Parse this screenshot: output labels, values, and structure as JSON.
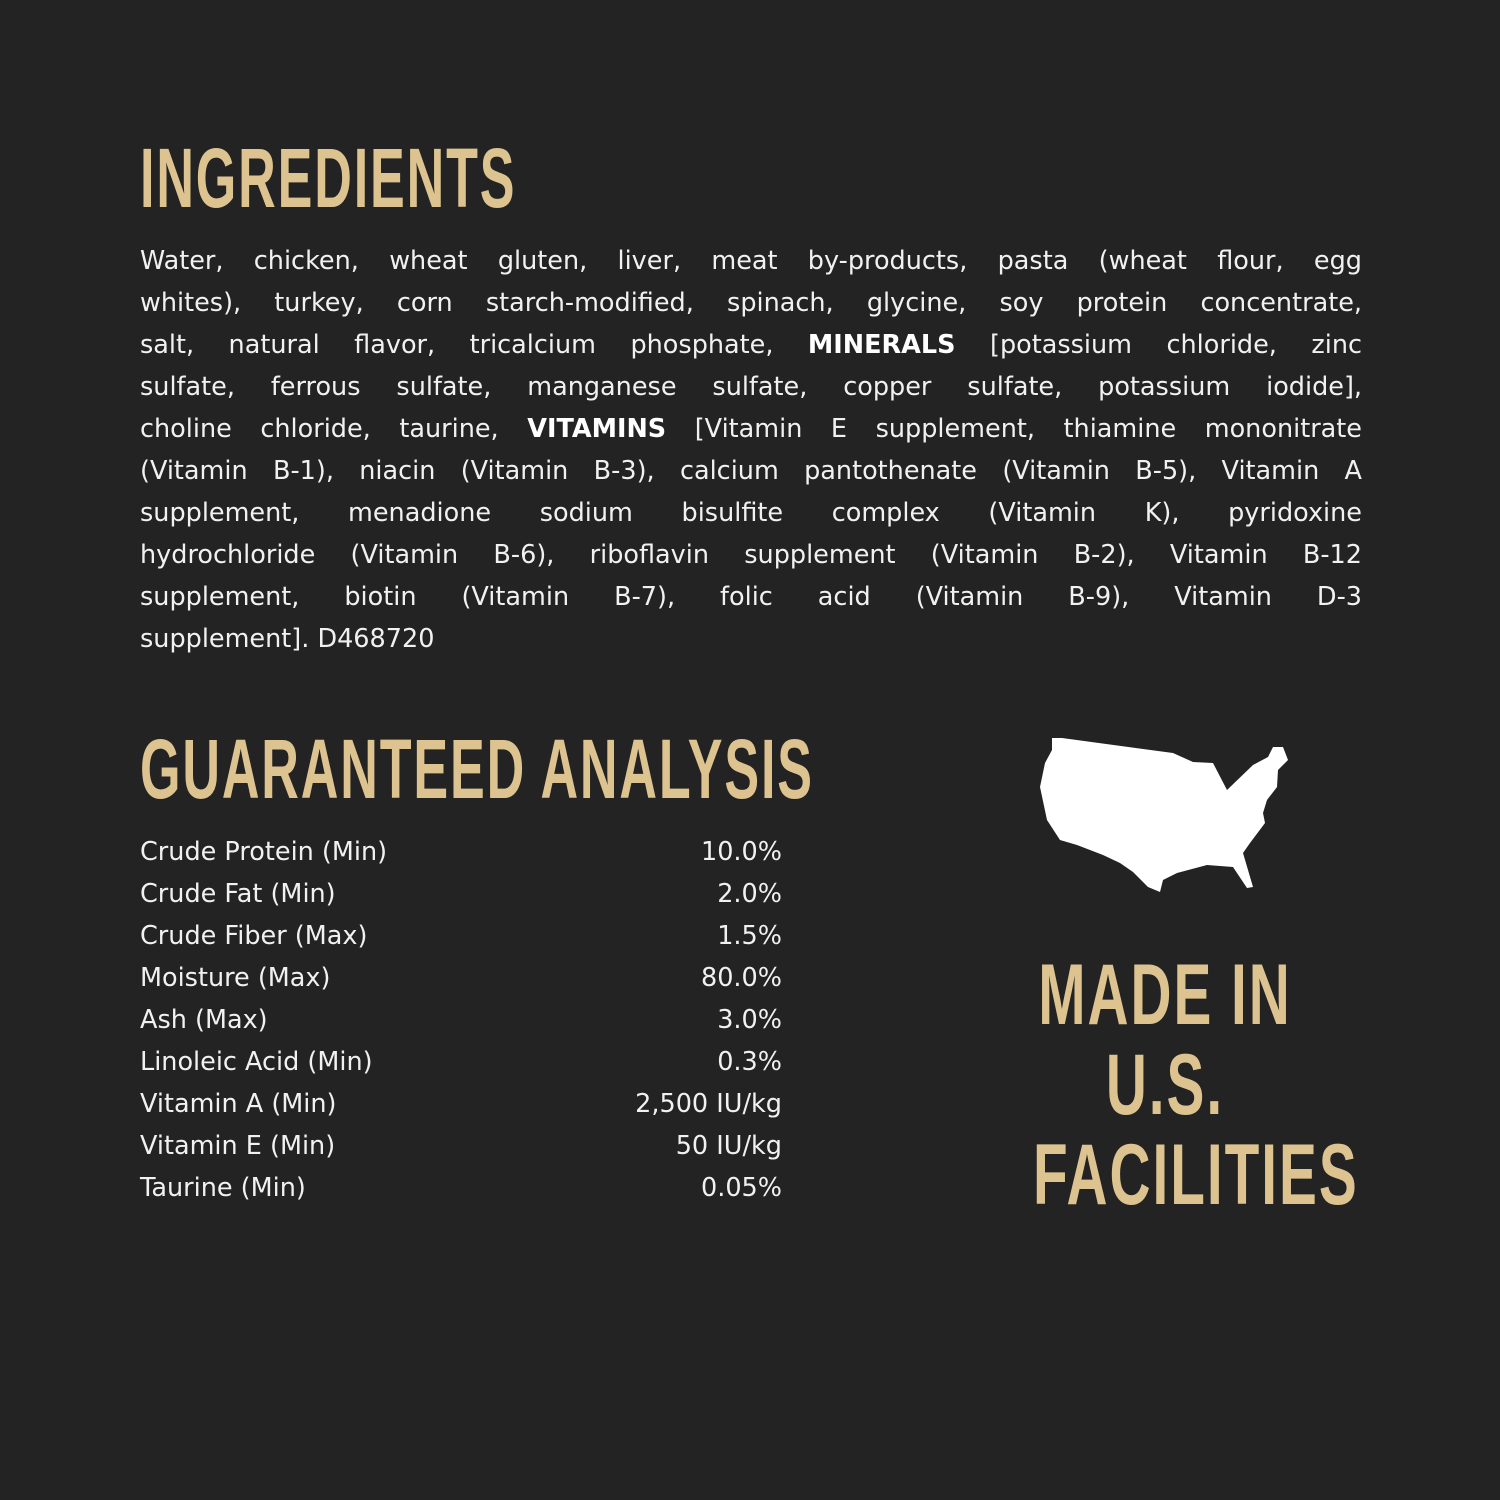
{
  "colors": {
    "background": "#232323",
    "accent": "#dcc38f",
    "text": "#f1f1f1"
  },
  "ingredients": {
    "title": "INGREDIENTS",
    "lines": [
      {
        "a": "Water, chicken, wheat gluten, liver, meat by-products, pasta (wheat flour, egg"
      },
      {
        "a": "whites), turkey, corn starch-modified, spinach, glycine, soy protein concentrate,"
      },
      {
        "a": "salt, natural flavor, tricalcium phosphate, ",
        "b": "MINERALS",
        "c": " [potassium chloride, zinc"
      },
      {
        "a": "sulfate, ferrous sulfate, manganese sulfate, copper sulfate, potassium iodide],"
      },
      {
        "a": "choline chloride, taurine, ",
        "b": "VITAMINS",
        "c": " [Vitamin E supplement, thiamine mononitrate"
      },
      {
        "a": "(Vitamin B-1), niacin (Vitamin B-3), calcium pantothenate (Vitamin B-5), Vitamin A"
      },
      {
        "a": "supplement, menadione sodium bisulfite complex (Vitamin K), pyridoxine"
      },
      {
        "a": "hydrochloride (Vitamin B-6), riboflavin supplement (Vitamin B-2), Vitamin B-12"
      },
      {
        "a": "supplement, biotin (Vitamin B-7), folic acid (Vitamin B-9), Vitamin D-3"
      },
      {
        "a": "supplement]. D468720"
      }
    ]
  },
  "analysis": {
    "title": "GUARANTEED ANALYSIS",
    "rows": [
      {
        "label": "Crude Protein (Min)",
        "value": "10.0%"
      },
      {
        "label": "Crude Fat (Min)",
        "value": "2.0%"
      },
      {
        "label": "Crude Fiber (Max)",
        "value": "1.5%"
      },
      {
        "label": "Moisture (Max)",
        "value": "80.0%"
      },
      {
        "label": "Ash (Max)",
        "value": "3.0%"
      },
      {
        "label": "Linoleic Acid (Min)",
        "value": "0.3%"
      },
      {
        "label": "Vitamin A (Min)",
        "value": "2,500 IU/kg"
      },
      {
        "label": "Vitamin E (Min)",
        "value": "50 IU/kg"
      },
      {
        "label": "Taurine (Min)",
        "value": "0.05%"
      }
    ]
  },
  "badge": {
    "icon": "usa-map-icon",
    "lines": [
      "MADE IN",
      "U.S.",
      "FACILITIES"
    ]
  }
}
